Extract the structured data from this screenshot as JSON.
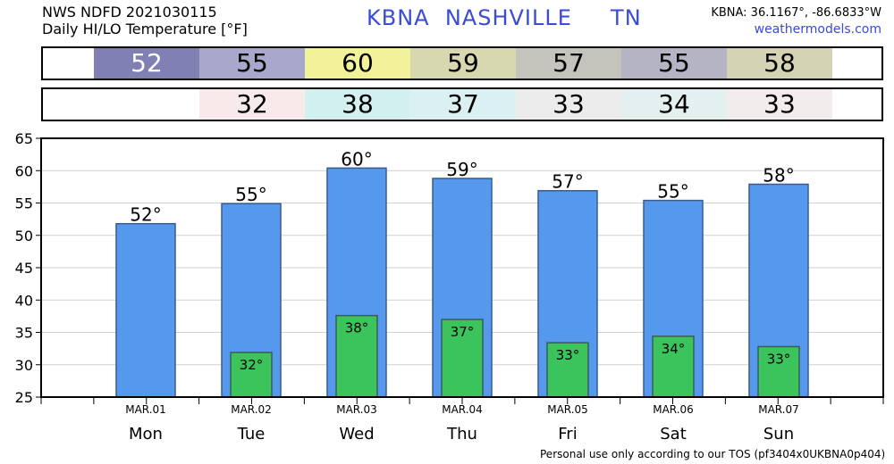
{
  "header": {
    "line1": "NWS NDFD 2021030115",
    "line2": "Daily HI/LO Temperature [°F]",
    "station": "KBNA  NASHVILLE     TN",
    "coords": "KBNA: 36.1167°, -86.6833°W",
    "site": "weathermodels.com"
  },
  "footer": "Personal use only according to our TOS (pf3404x0UKBNA0p404)",
  "hi_strip": [
    {
      "text": "52",
      "color": "#8080b4",
      "text_color": "#ffffff"
    },
    {
      "text": "55",
      "color": "#a8a8cc",
      "text_color": "#000000"
    },
    {
      "text": "60",
      "color": "#f2f29a",
      "text_color": "#000000"
    },
    {
      "text": "59",
      "color": "#d8d8b0",
      "text_color": "#000000"
    },
    {
      "text": "57",
      "color": "#c4c4bc",
      "text_color": "#000000"
    },
    {
      "text": "55",
      "color": "#b4b4c4",
      "text_color": "#000000"
    },
    {
      "text": "58",
      "color": "#d4d4b4",
      "text_color": "#000000"
    }
  ],
  "lo_strip": [
    {
      "text": "",
      "color": "#ffffff",
      "text_color": "#000000"
    },
    {
      "text": "32",
      "color": "#f8eaea",
      "text_color": "#000000"
    },
    {
      "text": "38",
      "color": "#d2f0f0",
      "text_color": "#000000"
    },
    {
      "text": "37",
      "color": "#daf0f2",
      "text_color": "#000000"
    },
    {
      "text": "33",
      "color": "#ececec",
      "text_color": "#000000"
    },
    {
      "text": "34",
      "color": "#e4f0f0",
      "text_color": "#000000"
    },
    {
      "text": "33",
      "color": "#f2ecec",
      "text_color": "#000000"
    }
  ],
  "chart_data": {
    "type": "bar",
    "categories": [
      "MAR.01",
      "MAR.02",
      "MAR.03",
      "MAR.04",
      "MAR.05",
      "MAR.06",
      "MAR.07"
    ],
    "days": [
      "Mon",
      "Tue",
      "Wed",
      "Thu",
      "Fri",
      "Sat",
      "Sun"
    ],
    "series": [
      {
        "values": [
          51.8,
          54.9,
          60.4,
          58.8,
          56.9,
          55.4,
          57.9
        ],
        "labels": [
          "52°",
          "55°",
          "60°",
          "59°",
          "57°",
          "55°",
          "58°"
        ],
        "color": "#5599ef"
      },
      {
        "values": [
          null,
          31.9,
          37.6,
          37.0,
          33.4,
          34.4,
          32.8
        ],
        "labels": [
          "",
          "32°",
          "38°",
          "37°",
          "33°",
          "34°",
          "33°"
        ],
        "color": "#3cc45c"
      }
    ],
    "ylim": [
      25,
      65
    ],
    "yticks": [
      25,
      30,
      35,
      40,
      45,
      50,
      55,
      60,
      65
    ],
    "grid": true
  }
}
